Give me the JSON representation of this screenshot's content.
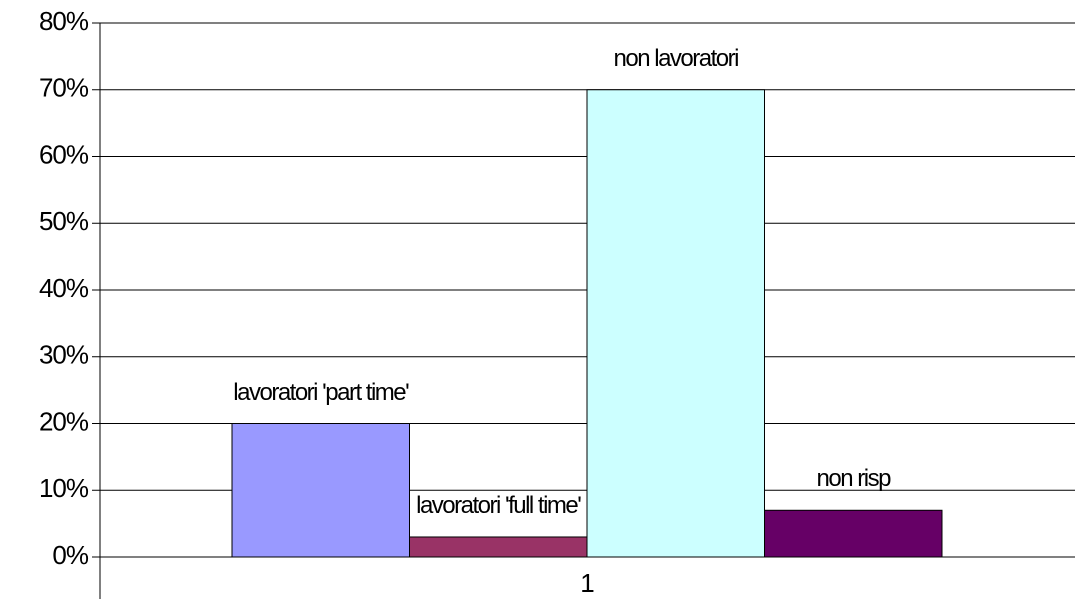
{
  "chart_data": {
    "type": "bar",
    "categories": [
      "1"
    ],
    "series": [
      {
        "name": "lavoratori 'part time'",
        "color": "#9999ff",
        "values": [
          20
        ]
      },
      {
        "name": "lavoratori 'full time'",
        "color": "#993366",
        "values": [
          3
        ]
      },
      {
        "name": "non lavoratori",
        "color": "#ccffff",
        "values": [
          70
        ]
      },
      {
        "name": "non risp",
        "color": "#660066",
        "values": [
          7
        ]
      }
    ],
    "ylim": [
      0,
      80
    ],
    "yticks": [
      {
        "value": 0,
        "label": "0%"
      },
      {
        "value": 10,
        "label": "10%"
      },
      {
        "value": 20,
        "label": "20%"
      },
      {
        "value": 30,
        "label": "30%"
      },
      {
        "value": 40,
        "label": "40%"
      },
      {
        "value": 50,
        "label": "50%"
      },
      {
        "value": 60,
        "label": "60%"
      },
      {
        "value": 70,
        "label": "70%"
      },
      {
        "value": 80,
        "label": "80%"
      }
    ],
    "grid": true
  }
}
